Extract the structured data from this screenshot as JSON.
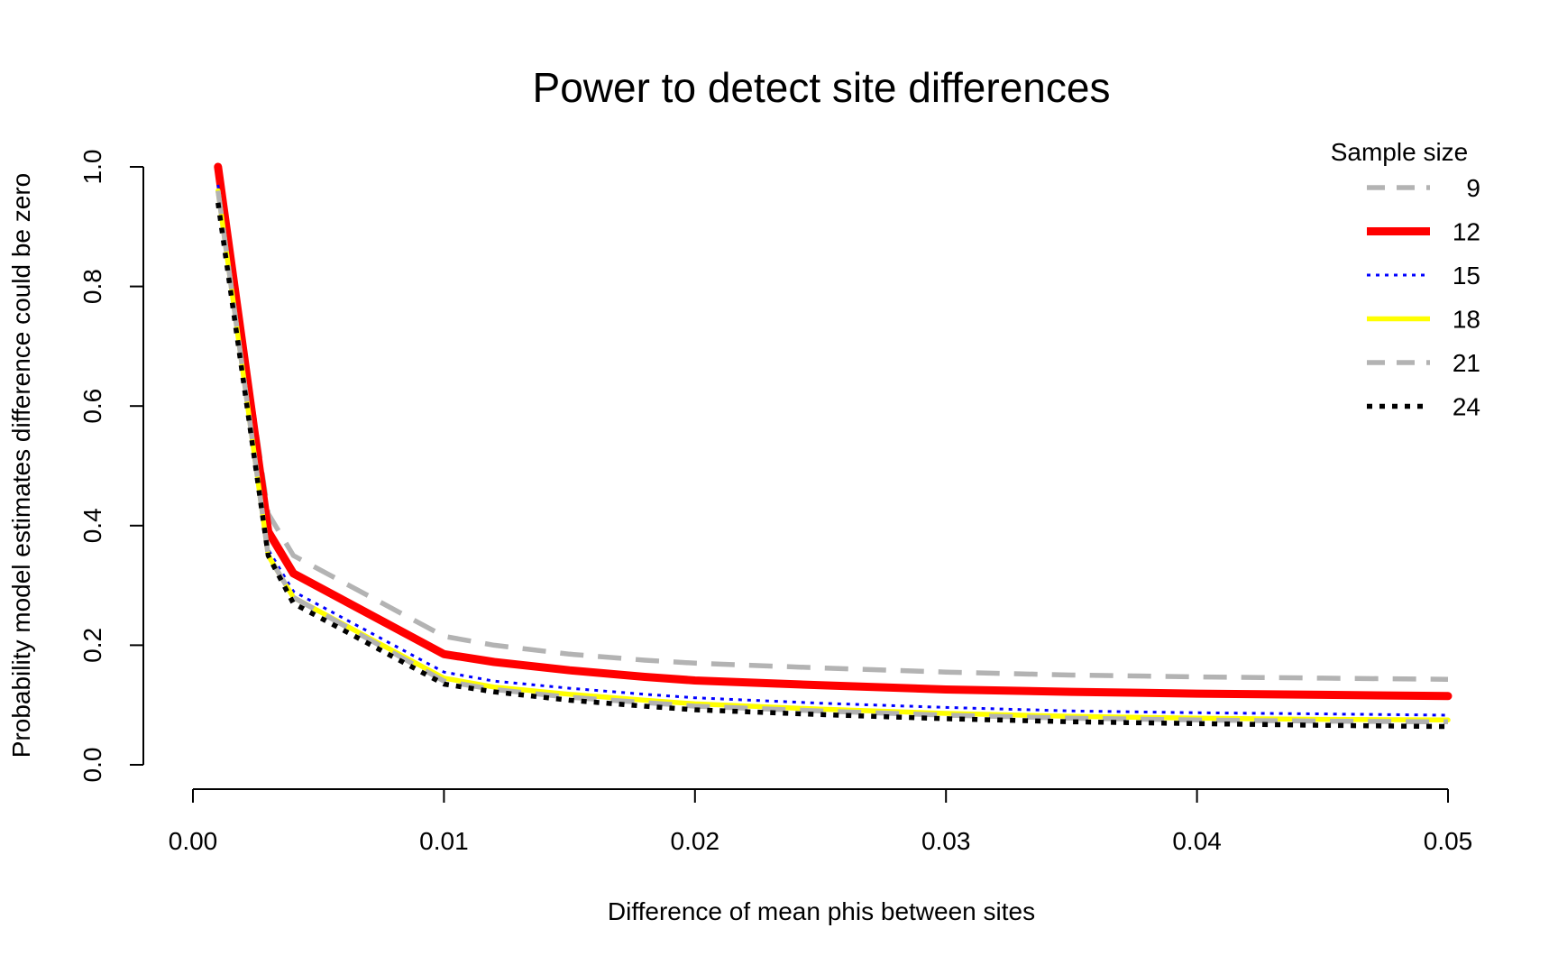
{
  "chart_data": {
    "type": "line",
    "title": "Power to detect site differences",
    "xlabel": "Difference of mean phis between sites",
    "ylabel": "Probability model estimates difference could be zero",
    "xlim": [
      0.0,
      0.05
    ],
    "ylim": [
      0.0,
      1.0
    ],
    "x_ticks": [
      "0.00",
      "0.01",
      "0.02",
      "0.03",
      "0.04",
      "0.05"
    ],
    "y_ticks": [
      "0.0",
      "0.2",
      "0.4",
      "0.6",
      "0.8",
      "1.0"
    ],
    "grid": false,
    "legend": {
      "title": "Sample size",
      "position": "top-right"
    },
    "x": [
      0.001,
      0.003,
      0.004,
      0.01,
      0.012,
      0.015,
      0.018,
      0.02,
      0.025,
      0.03,
      0.035,
      0.04,
      0.045,
      0.05
    ],
    "series": [
      {
        "name": "9",
        "color": "#b3b3b3",
        "dash": "dashed",
        "width": "medium",
        "values": [
          0.99,
          0.42,
          0.35,
          0.215,
          0.2,
          0.185,
          0.175,
          0.17,
          0.162,
          0.155,
          0.15,
          0.147,
          0.145,
          0.143
        ]
      },
      {
        "name": "12",
        "color": "#ff0000",
        "dash": "solid",
        "width": "thick",
        "values": [
          1.0,
          0.39,
          0.32,
          0.185,
          0.172,
          0.158,
          0.147,
          0.141,
          0.133,
          0.126,
          0.122,
          0.119,
          0.117,
          0.115
        ]
      },
      {
        "name": "15",
        "color": "#0000ff",
        "dash": "dotted",
        "width": "thin",
        "values": [
          0.97,
          0.36,
          0.29,
          0.155,
          0.14,
          0.128,
          0.118,
          0.112,
          0.103,
          0.096,
          0.09,
          0.087,
          0.085,
          0.083
        ]
      },
      {
        "name": "18",
        "color": "#ffff00",
        "dash": "solid",
        "width": "medium",
        "values": [
          0.96,
          0.35,
          0.28,
          0.145,
          0.13,
          0.118,
          0.108,
          0.102,
          0.093,
          0.086,
          0.081,
          0.078,
          0.076,
          0.075
        ]
      },
      {
        "name": "21",
        "color": "#b3b3b3",
        "dash": "dashed",
        "width": "medium",
        "values": [
          0.96,
          0.35,
          0.28,
          0.14,
          0.126,
          0.113,
          0.104,
          0.098,
          0.09,
          0.083,
          0.078,
          0.075,
          0.073,
          0.072
        ]
      },
      {
        "name": "24",
        "color": "#000000",
        "dash": "dotted",
        "width": "medium",
        "values": [
          0.94,
          0.35,
          0.27,
          0.135,
          0.122,
          0.108,
          0.098,
          0.092,
          0.084,
          0.077,
          0.072,
          0.069,
          0.066,
          0.064
        ]
      }
    ]
  }
}
